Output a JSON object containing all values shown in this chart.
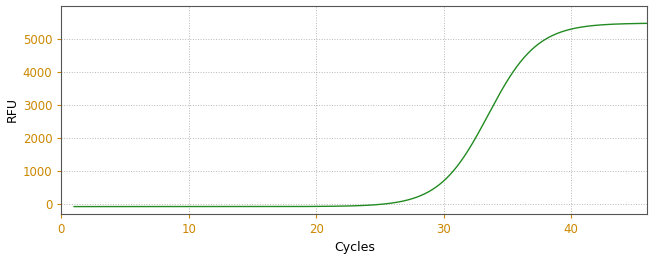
{
  "xlabel": "Cycles",
  "ylabel": "RFU",
  "xlim": [
    0,
    46
  ],
  "ylim": [
    -300,
    6000
  ],
  "xticks": [
    0,
    10,
    20,
    30,
    40
  ],
  "yticks": [
    0,
    1000,
    2000,
    3000,
    4000,
    5000
  ],
  "line_color": "#228B22",
  "background_color": "#ffffff",
  "grid_color": "#888888",
  "tick_label_color_x": "#cc8800",
  "tick_label_color_y": "#cc8800",
  "xlabel_color": "#000000",
  "ylabel_color": "#000000",
  "sigmoid_L": 5550,
  "sigmoid_k": 0.52,
  "sigmoid_x0": 33.5,
  "x_start": 1,
  "x_end": 46
}
